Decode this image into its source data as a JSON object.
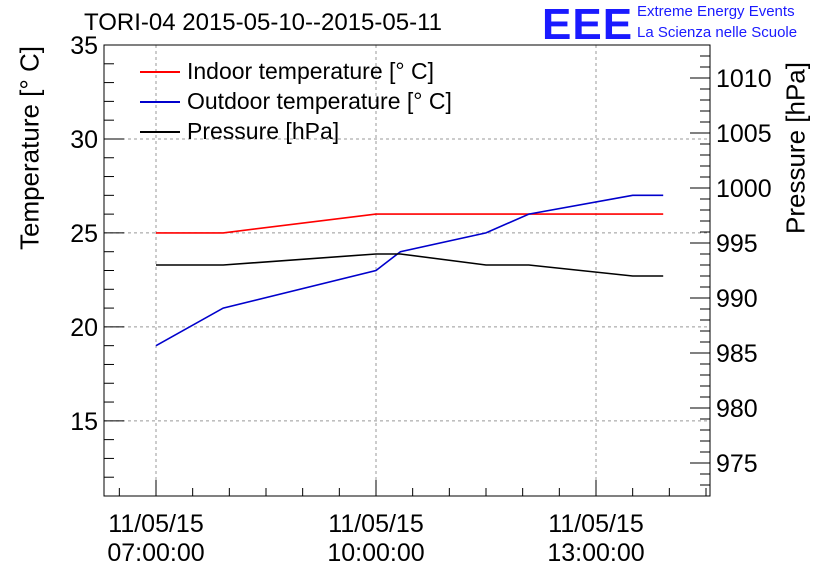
{
  "title": "TORI-04 2015-05-10--2015-05-11",
  "logo": {
    "mark": "EEE",
    "line1": "Extreme Energy Events",
    "line2": "La Scienza nelle Scuole",
    "color": "#1a1aff"
  },
  "chart_data": {
    "type": "line",
    "title": "TORI-04 2015-05-10--2015-05-11",
    "ylabel": "Temperature [° C]",
    "y2label": "Pressure [hPa]",
    "ylim": [
      11,
      35
    ],
    "y2lim": [
      972,
      1013
    ],
    "yticks": [
      15,
      20,
      25,
      30,
      35
    ],
    "y2ticks": [
      975,
      980,
      985,
      990,
      995,
      1000,
      1005,
      1010
    ],
    "xticks": [
      {
        "x": "07:00",
        "line1": "11/05/15",
        "line2": "07:00:00"
      },
      {
        "x": "10:00",
        "line1": "11/05/15",
        "line2": "10:00:00"
      },
      {
        "x": "13:00",
        "line1": "11/05/15",
        "line2": "13:00:00"
      }
    ],
    "grid": true,
    "legend": "top-left",
    "series": [
      {
        "name": "Indoor temperature [° C]",
        "axis": "left",
        "color": "#ff0000",
        "points": [
          [
            "07:00",
            25.0
          ],
          [
            "07:55",
            25.0
          ],
          [
            "10:00",
            26.0
          ],
          [
            "13:55",
            26.0
          ]
        ]
      },
      {
        "name": "Outdoor temperature [° C]",
        "axis": "left",
        "color": "#0000cc",
        "points": [
          [
            "07:00",
            19.0
          ],
          [
            "07:55",
            21.0
          ],
          [
            "10:00",
            23.0
          ],
          [
            "10:20",
            24.0
          ],
          [
            "11:30",
            25.0
          ],
          [
            "12:05",
            26.0
          ],
          [
            "13:30",
            27.0
          ],
          [
            "13:55",
            27.0
          ]
        ]
      },
      {
        "name": "Pressure [hPa]",
        "axis": "right",
        "color": "#000000",
        "points": [
          [
            "07:00",
            993.0
          ],
          [
            "07:55",
            993.0
          ],
          [
            "10:00",
            994.0
          ],
          [
            "10:20",
            994.0
          ],
          [
            "11:30",
            993.0
          ],
          [
            "12:05",
            993.0
          ],
          [
            "13:30",
            992.0
          ],
          [
            "13:55",
            992.0
          ]
        ]
      }
    ]
  }
}
